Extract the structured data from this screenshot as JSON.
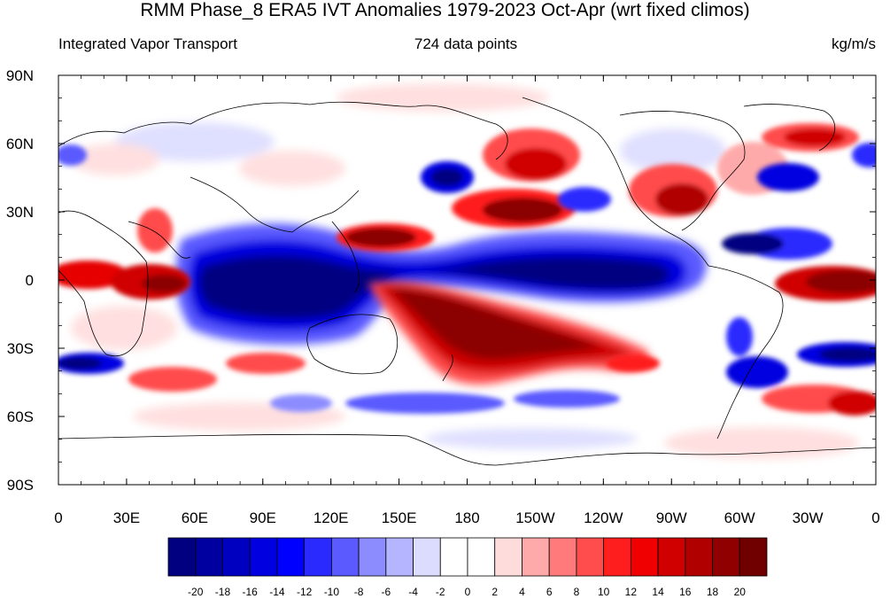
{
  "title": "RMM Phase_8 ERA5 IVT Anomalies 1979-2023 Oct-Apr (wrt fixed climos)",
  "left_label": "Integrated Vapor Transport",
  "center_label": "724 data points",
  "right_label": "kg/m/s",
  "lat_ticks": [
    "90N",
    "60N",
    "30N",
    "0",
    "30S",
    "60S",
    "90S"
  ],
  "lon_ticks": [
    "0",
    "30E",
    "60E",
    "90E",
    "120E",
    "150E",
    "180",
    "150W",
    "120W",
    "90W",
    "60W",
    "30W",
    "0"
  ],
  "colorbar": {
    "labels": [
      "-20",
      "-18",
      "-16",
      "-14",
      "-12",
      "-10",
      "-8",
      "-6",
      "-4",
      "-2",
      "0",
      "2",
      "4",
      "6",
      "8",
      "10",
      "12",
      "14",
      "16",
      "18",
      "20"
    ],
    "colors": [
      "#000080",
      "#0000a0",
      "#0000c0",
      "#0000e0",
      "#0000ff",
      "#2a2aff",
      "#5a5aff",
      "#8c8cff",
      "#b4b4ff",
      "#dcdcff",
      "#ffffff",
      "#ffffff",
      "#ffdcdc",
      "#ffaaaa",
      "#ff7b7b",
      "#ff4c4c",
      "#ff1e1e",
      "#f00000",
      "#d00000",
      "#b00000",
      "#900000",
      "#700000"
    ]
  },
  "colors": {
    "strong_positive": "#8b0000",
    "positive": "#e60000",
    "weak_positive": "#ffb3b3",
    "strong_negative": "#000080",
    "negative": "#0000e6",
    "weak_negative": "#b3b3ff"
  }
}
